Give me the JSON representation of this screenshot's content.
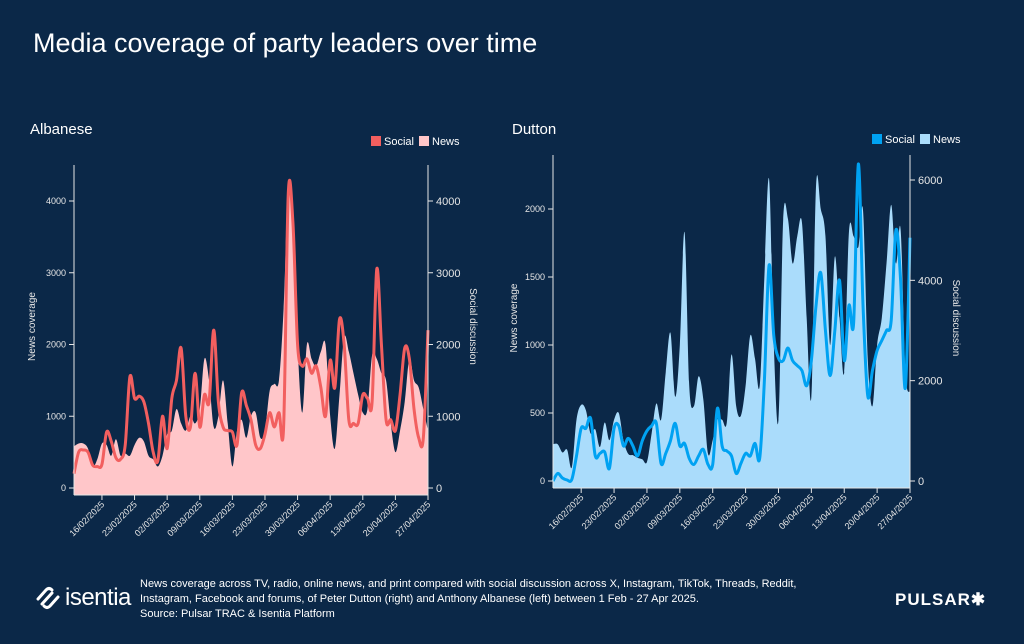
{
  "title": "Media coverage of party leaders over time",
  "footer": {
    "lines": [
      "News coverage across TV, radio, online news, and print compared with social discussion across X, Instagram, TikTok, Threads, Reddit,",
      "Instagram, Facebook and forums, of Peter Dutton (right) and Anthony Albanese (left) between 1 Feb - 27 Apr 2025.",
      "Source: Pulsar TRAC & Isentia Platform"
    ],
    "logo_left": "isentia",
    "logo_right": "PULSAR✱"
  },
  "chart_data": [
    {
      "type": "area+line",
      "title": "Albanese",
      "ylabel": "News coverage",
      "y2label": "Social discussion",
      "ylim": [
        0,
        4500
      ],
      "y2lim": [
        0,
        4500
      ],
      "yticks": [
        0,
        1000,
        2000,
        3000,
        4000
      ],
      "y2ticks": [
        0,
        1000,
        2000,
        3000,
        4000
      ],
      "legend": "top-right",
      "xticks": [
        "16/02/2025",
        "23/02/2025",
        "02/03/2025",
        "09/03/2025",
        "16/03/2025",
        "23/03/2025",
        "30/03/2025",
        "06/04/2025",
        "13/04/2025",
        "20/04/2025",
        "27/04/2025"
      ],
      "colors": {
        "Social": "#f25f5f",
        "News": "#ffc6c9"
      },
      "series": [
        {
          "name": "Social",
          "axis": "right",
          "style": "line",
          "values": [
            200,
            500,
            530,
            500,
            320,
            300,
            330,
            780,
            650,
            420,
            400,
            600,
            1550,
            1250,
            1280,
            1200,
            900,
            500,
            380,
            1000,
            550,
            1250,
            1500,
            1950,
            1000,
            850,
            1600,
            850,
            1300,
            1200,
            2200,
            1200,
            850,
            800,
            780,
            600,
            1330,
            1150,
            950,
            600,
            550,
            750,
            1050,
            850,
            1050,
            850,
            4100,
            3700,
            2000,
            1700,
            1800,
            1600,
            1700,
            1400,
            1000,
            1780,
            1400,
            2350,
            2000,
            950,
            900,
            900,
            1300,
            1250,
            1200,
            3050,
            2000,
            950,
            950,
            800,
            1300,
            1950,
            1800,
            1100,
            700,
            700,
            2200
          ]
        },
        {
          "name": "News",
          "axis": "left",
          "style": "area",
          "values": [
            580,
            620,
            620,
            550,
            300,
            400,
            620,
            600,
            450,
            680,
            450,
            480,
            450,
            600,
            700,
            650,
            450,
            400,
            300,
            450,
            750,
            800,
            1100,
            900,
            800,
            1000,
            900,
            1100,
            1800,
            1500,
            850,
            1000,
            1500,
            900,
            300,
            800,
            950,
            700,
            1000,
            1050,
            700,
            800,
            1350,
            1450,
            1500,
            2500,
            4200,
            3800,
            2000,
            1050,
            2000,
            1800,
            1700,
            1900,
            2000,
            1000,
            550,
            1300,
            2100,
            1900,
            1600,
            1300,
            1050,
            1100,
            1850,
            1800,
            1600,
            1500,
            900,
            500,
            800,
            1200,
            1800,
            1500,
            1400,
            1100,
            800
          ]
        }
      ]
    },
    {
      "type": "area+line",
      "title": "Dutton",
      "ylabel": "News coverage",
      "y2label": "Social discussion",
      "ylim": [
        -50,
        2400
      ],
      "y2lim": [
        -150,
        6500
      ],
      "yticks": [
        0,
        500,
        1000,
        1500,
        2000
      ],
      "y2ticks": [
        0,
        2000,
        4000,
        6000
      ],
      "legend": "top-right",
      "xticks": [
        "16/02/2025",
        "23/02/2025",
        "02/03/2025",
        "09/03/2025",
        "16/03/2025",
        "23/03/2025",
        "30/03/2025",
        "06/04/2025",
        "13/04/2025",
        "20/04/2025",
        "27/04/2025"
      ],
      "colors": {
        "Social": "#00a2f2",
        "News": "#aadcfb"
      },
      "series": [
        {
          "name": "Social",
          "axis": "right",
          "style": "line",
          "values": [
            0,
            150,
            60,
            20,
            30,
            500,
            1050,
            1050,
            1250,
            500,
            550,
            580,
            250,
            1050,
            1100,
            700,
            850,
            700,
            500,
            800,
            1000,
            1100,
            1150,
            350,
            550,
            800,
            1150,
            700,
            750,
            450,
            330,
            500,
            630,
            330,
            330,
            1450,
            700,
            600,
            500,
            150,
            350,
            550,
            500,
            750,
            450,
            2000,
            4300,
            2900,
            2450,
            2400,
            2650,
            2400,
            2300,
            2200,
            1900,
            2400,
            3500,
            4150,
            3000,
            2100,
            3000,
            4000,
            2400,
            3500,
            3150,
            6320,
            3500,
            1700,
            2200,
            2600,
            2800,
            3000,
            3200,
            5000,
            4000,
            1850,
            4850
          ]
        },
        {
          "name": "News",
          "axis": "left",
          "style": "area",
          "values": [
            270,
            270,
            210,
            230,
            100,
            450,
            560,
            520,
            350,
            380,
            250,
            430,
            300,
            450,
            500,
            300,
            200,
            190,
            170,
            160,
            140,
            350,
            570,
            450,
            800,
            1090,
            620,
            1000,
            1830,
            700,
            550,
            770,
            600,
            200,
            300,
            450,
            450,
            430,
            930,
            550,
            480,
            700,
            1070,
            900,
            700,
            1500,
            2220,
            1000,
            450,
            1920,
            1930,
            1600,
            1800,
            1900,
            1200,
            620,
            2170,
            2000,
            1800,
            1000,
            1650,
            1200,
            800,
            1830,
            1800,
            1720,
            1990,
            900,
            550,
            1000,
            1200,
            1600,
            2030,
            1600,
            1850,
            800,
            650
          ]
        }
      ]
    }
  ]
}
